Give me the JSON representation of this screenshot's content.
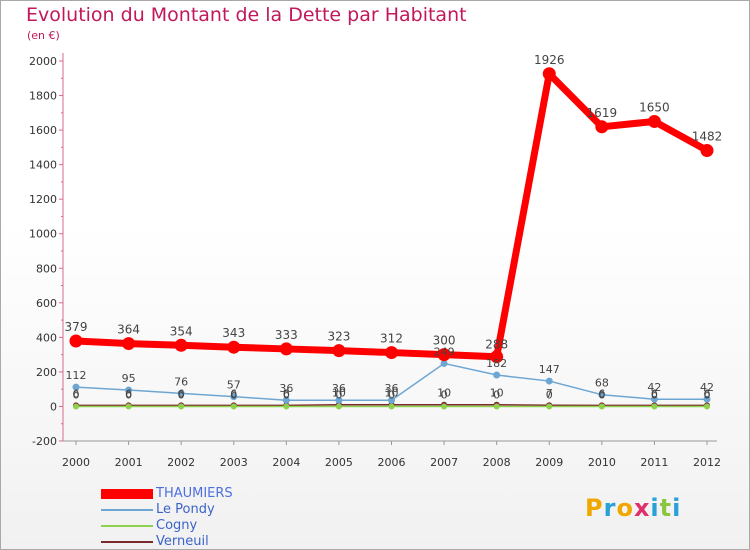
{
  "title": "Evolution du Montant de la Dette par Habitant",
  "unit": "(en €)",
  "logo": {
    "letters": [
      "P",
      "r",
      "o",
      "x",
      "i",
      "t",
      "i"
    ],
    "colors": [
      "#f0a800",
      "#2aa0d8",
      "#f0a800",
      "#e0306a",
      "#2aa0d8",
      "#8cc63f",
      "#2aa0d8"
    ]
  },
  "chart_data": {
    "type": "line",
    "x": [
      "2000",
      "2001",
      "2002",
      "2003",
      "2004",
      "2005",
      "2006",
      "2007",
      "2008",
      "2009",
      "2010",
      "2011",
      "2012"
    ],
    "ylim": [
      -200,
      2000
    ],
    "yticks": [
      -200,
      0,
      200,
      400,
      600,
      800,
      1000,
      1200,
      1400,
      1600,
      1800,
      2000
    ],
    "grid": false,
    "legend": "bottom-left",
    "series": [
      {
        "name": "THAUMIERS",
        "color": "#ff0000",
        "values": [
          379,
          364,
          354,
          343,
          333,
          323,
          312,
          300,
          288,
          1926,
          1619,
          1650,
          1482
        ]
      },
      {
        "name": "Le Pondy",
        "color": "#6da6d2",
        "values": [
          112,
          95,
          76,
          57,
          36,
          36,
          36,
          249,
          182,
          147,
          68,
          42,
          42
        ]
      },
      {
        "name": "Cogny",
        "color": "#8fd14f",
        "values": [
          0,
          0,
          0,
          0,
          0,
          0,
          0,
          0,
          0,
          0,
          0,
          0,
          0
        ]
      },
      {
        "name": "Verneuil",
        "color": "#7a2a2a",
        "values": [
          6,
          6,
          6,
          6,
          6,
          10,
          10,
          10,
          10,
          7,
          6,
          6,
          6
        ]
      }
    ]
  }
}
